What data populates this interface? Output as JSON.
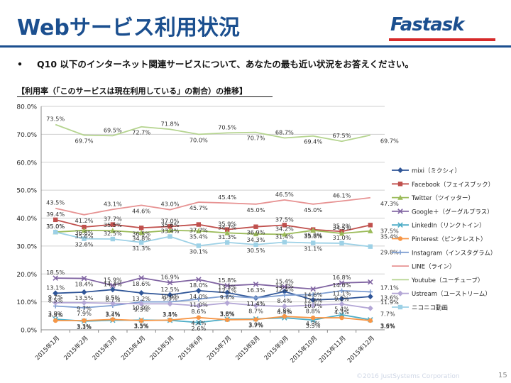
{
  "header": {
    "title": "Webサービス利用状況",
    "logo_text": "Fastask"
  },
  "question": {
    "bullet": "•",
    "text": "Q10 以下のインターネット関連サービスについて、あなたの最も近い状況をお答えください。"
  },
  "subheading": "【利用率（「このサービスは現在利用している」の割合）の推移】",
  "footer": {
    "copyright": "©2016 JustSystems Corporation",
    "page_number": "15"
  },
  "chart_data": {
    "type": "line",
    "title": "",
    "xlabel": "",
    "ylabel": "",
    "ylim": [
      0,
      80
    ],
    "yticks": [
      "0.0%",
      "10.0%",
      "20.0%",
      "30.0%",
      "40.0%",
      "50.0%",
      "60.0%",
      "70.0%",
      "80.0%"
    ],
    "grid": true,
    "legend_position": "right",
    "categories": [
      "2015年1月",
      "2015年2月",
      "2015年3月",
      "2015年4月",
      "2015年5月",
      "2015年6月",
      "2015年7月",
      "2015年8月",
      "2015年9月",
      "2015年10月",
      "2015年11月",
      "2015年12月"
    ],
    "series": [
      {
        "name": "mixi（ミクシィ）",
        "color": "#2f5597",
        "marker": "diamond",
        "values": [
          13.1,
          13.5,
          14.4,
          13.2,
          12.5,
          14.0,
          13.3,
          11.4,
          13.7,
          10.7,
          11.1,
          11.9
        ],
        "labels": [
          "13.1%",
          "13.5%",
          "14.4%",
          "13.2%",
          "12.5%",
          "14.0%",
          "13.3%",
          "11.4%",
          "13.7%",
          "10.7%",
          "11.1%",
          "11.9%"
        ]
      },
      {
        "name": "Facebook（フェイスブック）",
        "color": "#c0504d",
        "marker": "square",
        "values": [
          39.4,
          36.8,
          37.7,
          36.5,
          37.0,
          37.7,
          35.9,
          36.9,
          37.5,
          35.9,
          35.2,
          37.5
        ],
        "labels": [
          "39.4%",
          "36.8%",
          "37.7%",
          "36.5%",
          "37.0%",
          "37.7%",
          "35.9%",
          "36.9%",
          "37.5%",
          "35.9%",
          "35.2%",
          "37.5%"
        ]
      },
      {
        "name": "Twitter（ツイッター）",
        "color": "#9bbb59",
        "marker": "triangle",
        "values": [
          35.0,
          35.6,
          35.5,
          34.8,
          35.6,
          35.4,
          34.7,
          34.3,
          34.2,
          35.6,
          34.5,
          35.4
        ],
        "labels": [
          "35.0%",
          "35.6%",
          "35.5%",
          "34.8%",
          "35.6%",
          "35.4%",
          "34.7%",
          "34.3%",
          "34.2%",
          "35.6%",
          "34.5%",
          "35.4%"
        ]
      },
      {
        "name": "Google＋（グーグルプラス）",
        "color": "#8064a2",
        "marker": "x",
        "values": [
          18.5,
          18.4,
          15.9,
          18.6,
          16.9,
          18.0,
          15.8,
          16.3,
          15.4,
          14.6,
          16.8,
          17.1
        ],
        "labels": [
          "18.5%",
          "18.4%",
          "15.9%",
          "18.6%",
          "16.9%",
          "18.0%",
          "15.8%",
          "16.3%",
          "15.4%",
          "14.6%",
          "16.8%",
          "17.1%"
        ]
      },
      {
        "name": "LinkedIn（リンクトイン）",
        "color": "#4bacc6",
        "marker": "x",
        "values": [
          3.8,
          3.1,
          3.4,
          3.5,
          3.4,
          2.6,
          3.8,
          3.9,
          4.3,
          3.5,
          5.4,
          3.6
        ],
        "labels": [
          "3.8%",
          "3.1%",
          "3.4%",
          "3.5%",
          "3.4%",
          "2.6%",
          "3.8%",
          "3.9%",
          "4.3%",
          "3.5%",
          "5.4%",
          "3.6%"
        ]
      },
      {
        "name": "Pinterest（ピンタレスト）",
        "color": "#f79646",
        "marker": "circle",
        "values": [
          3.3,
          3.3,
          3.7,
          3.3,
          3.5,
          4.4,
          3.6,
          3.7,
          4.8,
          4.3,
          4.3,
          3.3
        ],
        "labels": [
          "3.3%",
          "3.3%",
          "3.7%",
          "3.3%",
          "3.5%",
          "4.4%",
          "3.6%",
          "3.7%",
          "4.8%",
          "4.3%",
          "4.3%",
          "3.3%"
        ]
      },
      {
        "name": "Instagram（インスタグラム）",
        "color": "#7f9fd2",
        "marker": "plus",
        "values": [
          8.5,
          7.9,
          8.7,
          10.0,
          10.0,
          11.0,
          12.1,
          11.4,
          12.4,
          12.6,
          14.0,
          13.6
        ],
        "labels": [
          "8.5%",
          "7.9%",
          "8.7%",
          "10.0%",
          "10.0%",
          "11.0%",
          "12.1%",
          "11.4%",
          "12.4%",
          "12.6%",
          "14.0%",
          "13.6%"
        ]
      },
      {
        "name": "LINE（ライン）",
        "color": "#e79393",
        "marker": "none",
        "values": [
          43.5,
          41.2,
          43.1,
          44.6,
          43.0,
          45.7,
          45.4,
          45.0,
          46.5,
          45.0,
          46.1,
          47.3
        ],
        "labels": [
          "43.5%",
          "41.2%",
          "43.1%",
          "44.6%",
          "43.0%",
          "45.7%",
          "45.4%",
          "45.0%",
          "46.5%",
          "45.0%",
          "46.1%",
          "47.3%"
        ]
      },
      {
        "name": "Youtube（ユーチューブ）",
        "color": "#b5d48f",
        "marker": "none",
        "values": [
          73.5,
          69.7,
          69.5,
          72.7,
          71.8,
          70.0,
          70.5,
          70.7,
          68.7,
          69.4,
          67.5,
          69.7
        ],
        "labels": [
          "73.5%",
          "69.7%",
          "69.5%",
          "72.7%",
          "71.8%",
          "70.0%",
          "70.5%",
          "70.7%",
          "68.7%",
          "69.4%",
          "67.5%",
          "69.7%"
        ]
      },
      {
        "name": "Ustream（ユーストリーム）",
        "color": "#b4a7d6",
        "marker": "diamond",
        "values": [
          9.7,
          9.7,
          9.5,
          9.3,
          9.3,
          8.6,
          9.6,
          8.7,
          8.4,
          8.8,
          9.2,
          7.7
        ],
        "labels": [
          "9.7%",
          "9.7%",
          "9.5%",
          "9.3%",
          "9.3%",
          "8.6%",
          "9.6%",
          "8.7%",
          "8.4%",
          "8.8%",
          "9.2%",
          "7.7%"
        ]
      },
      {
        "name": "ニコニコ動画",
        "color": "#9dd1e6",
        "marker": "square",
        "values": [
          35.0,
          32.6,
          32.5,
          31.3,
          33.4,
          30.1,
          31.3,
          30.5,
          31.4,
          31.1,
          31.0,
          29.8
        ],
        "labels": [
          "35.0%",
          "32.6%",
          "32.5%",
          "31.3%",
          "33.4%",
          "30.1%",
          "31.3%",
          "30.5%",
          "31.4%",
          "31.1%",
          "31.0%",
          "29.8%"
        ]
      }
    ]
  }
}
